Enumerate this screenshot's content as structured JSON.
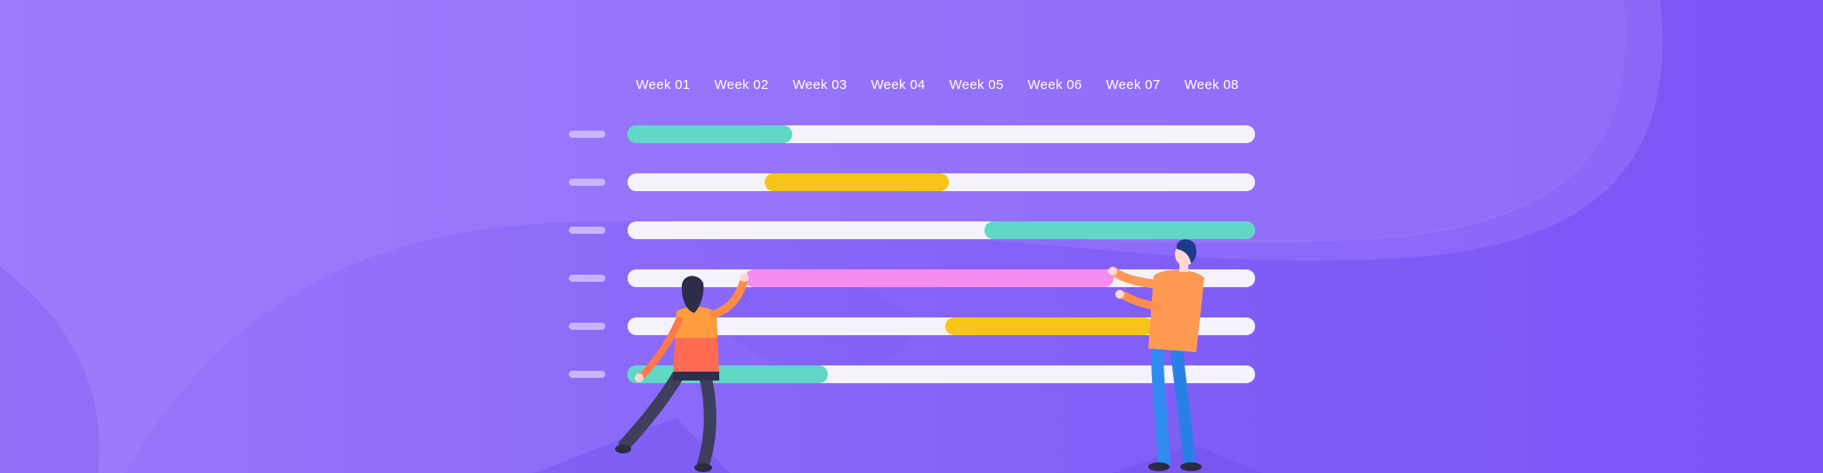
{
  "colors": {
    "background": "#8a66f8",
    "track": "#f4f2fb",
    "label": "#ffffff",
    "dash": "#c7b6ff",
    "teal": "#5fd8c6",
    "yellow": "#f5c518",
    "pink": "#f58cf0",
    "orange": "#ff8a50",
    "blue": "#2f8bf0"
  },
  "weeks": [
    "Week 01",
    "Week 02",
    "Week 03",
    "Week 04",
    "Week 05",
    "Week 06",
    "Week 07",
    "Week 08"
  ],
  "tasks": [
    {
      "start_week": 0.0,
      "end_week": 2.1,
      "color": "teal"
    },
    {
      "start_week": 1.75,
      "end_week": 4.1,
      "color": "yellow"
    },
    {
      "start_week": 4.55,
      "end_week": 8.0,
      "color": "teal"
    },
    {
      "start_week": 1.5,
      "end_week": 6.2,
      "color": "pink"
    },
    {
      "start_week": 4.05,
      "end_week": 6.7,
      "color": "yellow"
    },
    {
      "start_week": 0.0,
      "end_week": 2.55,
      "color": "teal"
    }
  ],
  "illustration": {
    "woman": "woman-figure",
    "man": "man-figure"
  }
}
